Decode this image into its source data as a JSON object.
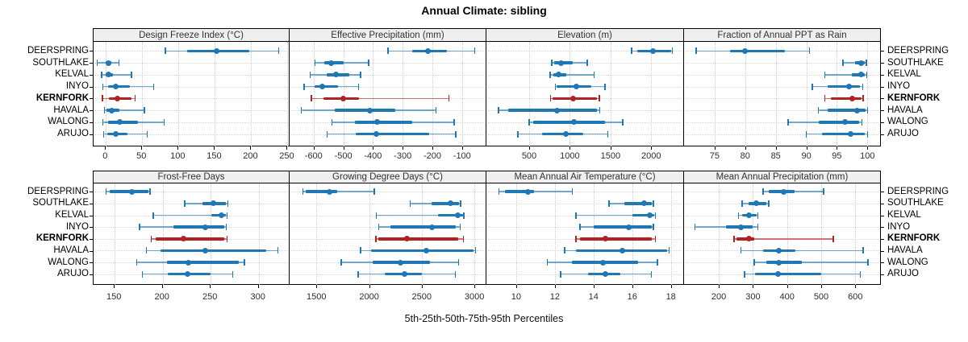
{
  "title": "Annual Climate: sibling",
  "xlabel": "5th-25th-50th-75th-95th Percentiles",
  "sites": [
    "DEERSPRING",
    "SOUTHLAKE",
    "KELVAL",
    "INYO",
    "KERNFORK",
    "HAVALA",
    "WALONG",
    "ARUJO"
  ],
  "highlight_site": "KERNFORK",
  "colors": {
    "series": "#1f77b4",
    "highlight": "#b22222",
    "header_bg": "#efefef",
    "grid": "#cdcdcd"
  },
  "chart_data": {
    "type": "dotplot",
    "note": "Horizontal percentile interval plot: thin line 5th-95th with end caps, thick line 25th-75th, dot at median (50th). 2x4 panel lattice, shared site rows.",
    "legend_position": "none",
    "grid": "dotted",
    "sites": [
      "DEERSPRING",
      "SOUTHLAKE",
      "KELVAL",
      "INYO",
      "KERNFORK",
      "HAVALA",
      "WALONG",
      "ARUJO"
    ],
    "panels": [
      {
        "title": "Design Freeze Index (°C)",
        "row": 0,
        "col": 0,
        "xlim": [
          -17,
          254
        ],
        "ticks": [
          0,
          50,
          100,
          150,
          200,
          250
        ],
        "percentiles": [
          [
            82,
            112,
            152,
            197,
            238
          ],
          [
            -12,
            0,
            3,
            8,
            18
          ],
          [
            -6,
            0,
            3,
            10,
            35
          ],
          [
            -4,
            3,
            14,
            33,
            66
          ],
          [
            -5,
            4,
            16,
            35,
            40
          ],
          [
            -2,
            1,
            8,
            19,
            53
          ],
          [
            -4,
            3,
            19,
            44,
            80
          ],
          [
            -3,
            2,
            14,
            30,
            57
          ]
        ]
      },
      {
        "title": "Effective Precipitation (mm)",
        "row": 0,
        "col": 1,
        "xlim": [
          -681,
          -18
        ],
        "ticks": [
          -600,
          -500,
          -400,
          -300,
          -200,
          -100
        ],
        "percentiles": [
          [
            -350,
            -268,
            -215,
            -150,
            -58
          ],
          [
            -595,
            -565,
            -540,
            -500,
            -415
          ],
          [
            -612,
            -555,
            -525,
            -480,
            -442
          ],
          [
            -632,
            -598,
            -570,
            -517,
            -448
          ],
          [
            -607,
            -568,
            -500,
            -448,
            -145
          ],
          [
            -641,
            -530,
            -411,
            -326,
            -188
          ],
          [
            -539,
            -462,
            -386,
            -268,
            -127
          ],
          [
            -555,
            -457,
            -390,
            -212,
            -121
          ]
        ]
      },
      {
        "title": "Elevation (m)",
        "row": 0,
        "col": 2,
        "xlim": [
          -25,
          2403
        ],
        "ticks": [
          500,
          1000,
          1500,
          2000
        ],
        "percentiles": [
          [
            1760,
            1830,
            2020,
            2240,
            2260
          ],
          [
            780,
            810,
            890,
            1035,
            1215
          ],
          [
            760,
            795,
            865,
            955,
            1300
          ],
          [
            820,
            840,
            1080,
            1265,
            1430
          ],
          [
            765,
            790,
            1035,
            1330,
            1360
          ],
          [
            125,
            245,
            845,
            1330,
            1365
          ],
          [
            500,
            545,
            1045,
            1430,
            1650
          ],
          [
            360,
            655,
            955,
            1165,
            1465
          ]
        ]
      },
      {
        "title": "Fraction of Annual PPT as Rain",
        "row": 0,
        "col": 3,
        "xlim": [
          70,
          102.2
        ],
        "ticks": [
          75,
          80,
          85,
          90,
          95,
          100
        ],
        "percentiles": [
          [
            72,
            77.5,
            80,
            86.5,
            90.5
          ],
          [
            96,
            98,
            99,
            99.5,
            99.8
          ],
          [
            93,
            97.5,
            99,
            99.5,
            99.9
          ],
          [
            91,
            93.5,
            97,
            98.8,
            99.2
          ],
          [
            93,
            94,
            97.5,
            99,
            99.3
          ],
          [
            92,
            93.5,
            98.3,
            99.7,
            100
          ],
          [
            87,
            92,
            96.3,
            98.6,
            99.1
          ],
          [
            90,
            92.5,
            97.3,
            99.5,
            100
          ]
        ]
      },
      {
        "title": "Frost-Free Days",
        "row": 1,
        "col": 0,
        "xlim": [
          128,
          333
        ],
        "ticks": [
          150,
          200,
          250,
          300
        ],
        "percentiles": [
          [
            141,
            145,
            168,
            185,
            187
          ],
          [
            223,
            241,
            253,
            266,
            268
          ],
          [
            190,
            251,
            261,
            266,
            267
          ],
          [
            176,
            211,
            244,
            264,
            266
          ],
          [
            188,
            193,
            222,
            264,
            267
          ],
          [
            183,
            198,
            244,
            308,
            320
          ],
          [
            173,
            204,
            227,
            279,
            285
          ],
          [
            179,
            205,
            226,
            250,
            273
          ]
        ]
      },
      {
        "title": "Growing Degree Days (°C)",
        "row": 1,
        "col": 1,
        "xlim": [
          1245,
          3114
        ],
        "ticks": [
          1500,
          2000,
          2500,
          3000
        ],
        "percentiles": [
          [
            1370,
            1395,
            1620,
            1700,
            2050
          ],
          [
            2390,
            2590,
            2770,
            2855,
            2870
          ],
          [
            2070,
            2655,
            2845,
            2890,
            2900
          ],
          [
            2090,
            2200,
            2595,
            2820,
            2865
          ],
          [
            2065,
            2085,
            2360,
            2845,
            2895
          ],
          [
            1920,
            2015,
            2545,
            2990,
            3010
          ],
          [
            1735,
            2030,
            2295,
            2580,
            2850
          ],
          [
            1895,
            2145,
            2335,
            2500,
            2820
          ]
        ]
      },
      {
        "title": "Mean Annual Air Temperature (°C)",
        "row": 1,
        "col": 2,
        "xlim": [
          8.46,
          18.68
        ],
        "ticks": [
          10,
          12,
          14,
          16,
          18
        ],
        "percentiles": [
          [
            9.1,
            9.4,
            10.6,
            10.9,
            12.9
          ],
          [
            14.8,
            15.6,
            16.6,
            17.0,
            17.1
          ],
          [
            13.1,
            16.0,
            16.9,
            17.15,
            17.2
          ],
          [
            13.3,
            14.0,
            15.8,
            17.0,
            17.1
          ],
          [
            13.1,
            13.3,
            14.6,
            17.0,
            17.2
          ],
          [
            12.5,
            13.1,
            15.5,
            17.8,
            17.9
          ],
          [
            11.6,
            12.9,
            14.5,
            16.3,
            17.3
          ],
          [
            12.3,
            13.7,
            14.6,
            15.4,
            17.0
          ]
        ]
      },
      {
        "title": "Mean Annual Precipitation (mm)",
        "row": 1,
        "col": 3,
        "xlim": [
          98,
          675
        ],
        "ticks": [
          200,
          300,
          400,
          500,
          600
        ],
        "percentiles": [
          [
            330,
            346,
            391,
            421,
            507
          ],
          [
            268,
            286,
            310,
            338,
            346
          ],
          [
            258,
            267,
            289,
            310,
            314
          ],
          [
            130,
            220,
            265,
            300,
            314
          ],
          [
            245,
            252,
            289,
            305,
            536
          ],
          [
            265,
            330,
            376,
            425,
            623
          ],
          [
            304,
            338,
            376,
            444,
            637
          ],
          [
            275,
            306,
            373,
            500,
            615
          ]
        ]
      }
    ]
  }
}
